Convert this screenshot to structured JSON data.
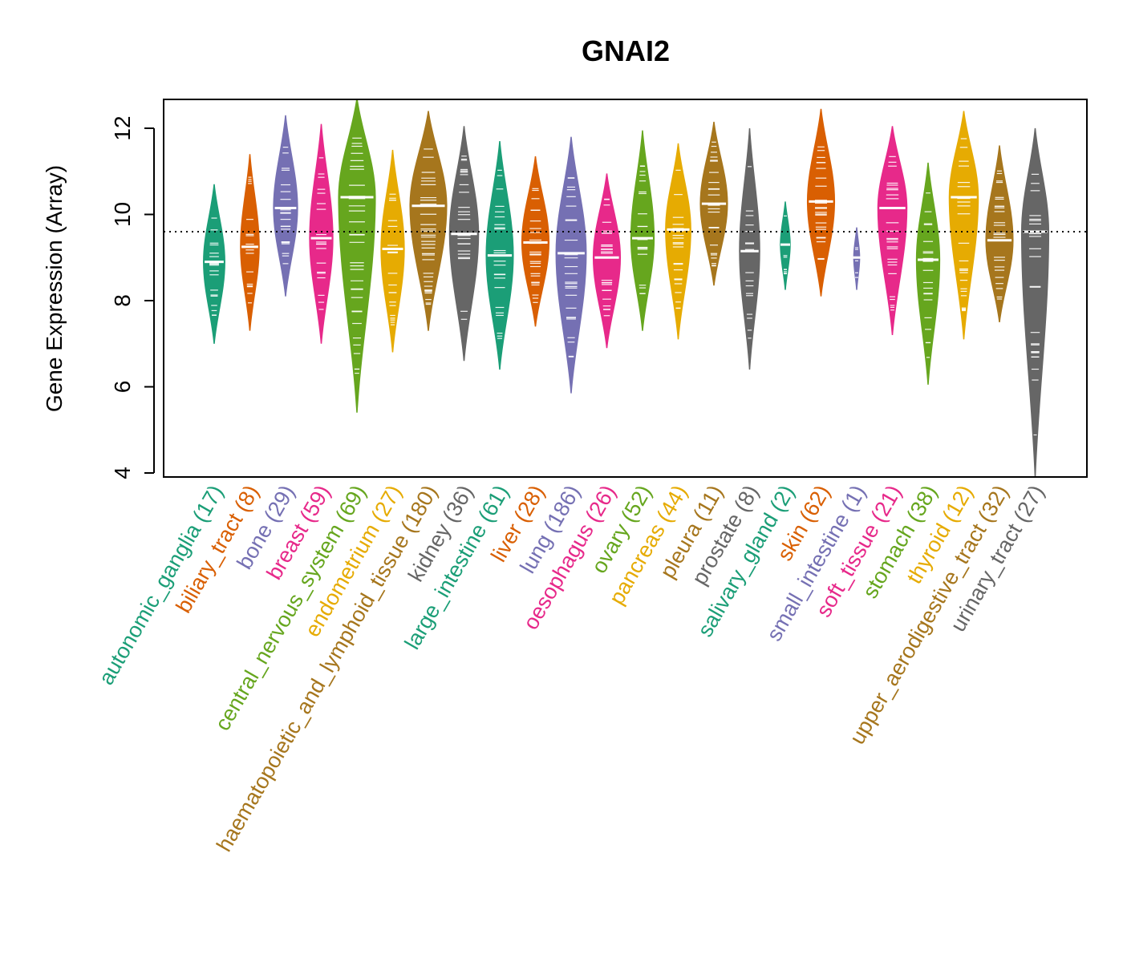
{
  "chart_data": {
    "type": "violin",
    "title": "GNAI2",
    "ylabel": "Gene Expression (Array)",
    "xlabel": "",
    "ylim": [
      3.9,
      12.65
    ],
    "yticks": [
      4,
      6,
      8,
      10,
      12
    ],
    "reference_line": 9.6,
    "grid": false,
    "categories": [
      {
        "name": "autonomic_ganglia",
        "n": "(17)",
        "color": "#1B9E77",
        "median": 8.9,
        "min": 7.0,
        "max": 10.7,
        "width": 0.55
      },
      {
        "name": "biliary_tract",
        "n": "(8)",
        "color": "#D95F02",
        "median": 9.25,
        "min": 7.3,
        "max": 11.4,
        "width": 0.48
      },
      {
        "name": "bone",
        "n": "(29)",
        "color": "#7570B3",
        "median": 10.15,
        "min": 8.1,
        "max": 12.3,
        "width": 0.62
      },
      {
        "name": "breast",
        "n": "(59)",
        "color": "#E7298A",
        "median": 9.45,
        "min": 7.0,
        "max": 12.1,
        "width": 0.6
      },
      {
        "name": "central_nervous_system",
        "n": "(69)",
        "color": "#66A61E",
        "median": 10.4,
        "min": 5.4,
        "max": 12.7,
        "width": 0.95
      },
      {
        "name": "endometrium",
        "n": "(27)",
        "color": "#E6AB02",
        "median": 9.2,
        "min": 6.8,
        "max": 11.5,
        "width": 0.6
      },
      {
        "name": "haematopoietic_and_lymphoid_tissue",
        "n": "(180)",
        "color": "#A6761D",
        "median": 10.2,
        "min": 7.3,
        "max": 12.4,
        "width": 0.95
      },
      {
        "name": "kidney",
        "n": "(36)",
        "color": "#666666",
        "median": 9.55,
        "min": 6.6,
        "max": 12.05,
        "width": 0.75
      },
      {
        "name": "large_intestine",
        "n": "(61)",
        "color": "#1B9E77",
        "median": 9.05,
        "min": 6.4,
        "max": 11.7,
        "width": 0.7
      },
      {
        "name": "liver",
        "n": "(28)",
        "color": "#D95F02",
        "median": 9.35,
        "min": 7.4,
        "max": 11.35,
        "width": 0.7
      },
      {
        "name": "lung",
        "n": "(186)",
        "color": "#7570B3",
        "median": 9.1,
        "min": 5.85,
        "max": 11.8,
        "width": 0.78
      },
      {
        "name": "oesophagus",
        "n": "(26)",
        "color": "#E7298A",
        "median": 9.0,
        "min": 6.9,
        "max": 10.95,
        "width": 0.7
      },
      {
        "name": "ovary",
        "n": "(52)",
        "color": "#66A61E",
        "median": 9.45,
        "min": 7.3,
        "max": 11.95,
        "width": 0.6
      },
      {
        "name": "pancreas",
        "n": "(44)",
        "color": "#E6AB02",
        "median": 9.65,
        "min": 7.1,
        "max": 11.65,
        "width": 0.65
      },
      {
        "name": "pleura",
        "n": "(11)",
        "color": "#A6761D",
        "median": 10.25,
        "min": 8.35,
        "max": 12.15,
        "width": 0.7
      },
      {
        "name": "prostate",
        "n": "(8)",
        "color": "#666666",
        "median": 9.15,
        "min": 6.4,
        "max": 12.0,
        "width": 0.52
      },
      {
        "name": "salivary_gland",
        "n": "(2)",
        "color": "#1B9E77",
        "median": 9.3,
        "min": 8.25,
        "max": 10.3,
        "width": 0.25
      },
      {
        "name": "skin",
        "n": "(62)",
        "color": "#D95F02",
        "median": 10.3,
        "min": 8.1,
        "max": 12.45,
        "width": 0.7
      },
      {
        "name": "small_intestine",
        "n": "(1)",
        "color": "#7570B3",
        "median": 9.0,
        "min": 8.25,
        "max": 9.7,
        "width": 0.15
      },
      {
        "name": "soft_tissue",
        "n": "(21)",
        "color": "#E7298A",
        "median": 10.15,
        "min": 7.2,
        "max": 12.05,
        "width": 0.75
      },
      {
        "name": "stomach",
        "n": "(38)",
        "color": "#66A61E",
        "median": 8.95,
        "min": 6.05,
        "max": 11.2,
        "width": 0.6
      },
      {
        "name": "thyroid",
        "n": "(12)",
        "color": "#E6AB02",
        "median": 10.4,
        "min": 7.1,
        "max": 12.4,
        "width": 0.75
      },
      {
        "name": "upper_aerodigestive_tract",
        "n": "(32)",
        "color": "#A6761D",
        "median": 9.4,
        "min": 7.5,
        "max": 11.6,
        "width": 0.7
      },
      {
        "name": "urinary_tract",
        "n": "(27)",
        "color": "#666666",
        "median": 9.6,
        "min": 3.9,
        "max": 12.0,
        "width": 0.7
      }
    ]
  }
}
